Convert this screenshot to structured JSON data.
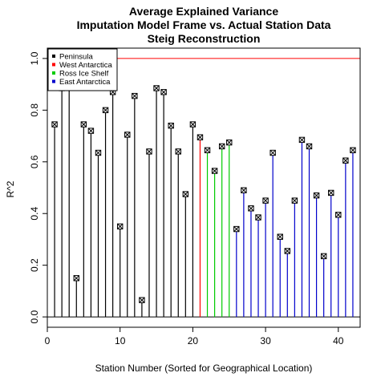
{
  "chart_data": {
    "type": "scatter",
    "plot_style": "vertical lines with open square-cross point markers (R type='h' with pch=7)",
    "title": [
      "Average Explained Variance",
      "Imputation Model Frame vs. Actual Station Data",
      "Steig Reconstruction"
    ],
    "xlabel": "Station Number (Sorted for Geographical Location)",
    "ylabel": "R^2",
    "xlim": [
      0,
      43
    ],
    "ylim": [
      -0.04,
      1.04
    ],
    "x_ticks": [
      0,
      10,
      20,
      30,
      40
    ],
    "x_tick_labels": [
      "0",
      "10",
      "20",
      "30",
      "40"
    ],
    "y_ticks": [
      0.0,
      0.2,
      0.4,
      0.6,
      0.8,
      1.0
    ],
    "y_tick_labels": [
      "0.0",
      "0.2",
      "0.4",
      "0.6",
      "0.8",
      "1.0"
    ],
    "grid": false,
    "legend_position": "top-left",
    "reference_lines": [
      {
        "orientation": "horizontal",
        "y": 0.0,
        "color": "#000000"
      },
      {
        "orientation": "horizontal",
        "y": 1.0,
        "color": "#ff0000"
      }
    ],
    "series": [
      {
        "name": "Peninsula",
        "color": "#000000",
        "x": [
          1,
          2,
          3,
          4,
          5,
          6,
          7,
          8,
          9,
          10,
          11,
          12,
          13,
          14,
          15,
          16,
          17,
          18,
          19,
          20
        ],
        "y": [
          0.745,
          0.885,
          0.895,
          0.15,
          0.745,
          0.72,
          0.635,
          0.8,
          0.87,
          0.35,
          0.705,
          0.855,
          0.065,
          0.64,
          0.885,
          0.87,
          0.74,
          0.64,
          0.475,
          0.745
        ]
      },
      {
        "name": "West Antarctica",
        "color": "#ff0000",
        "x": [
          21
        ],
        "y": [
          0.695
        ]
      },
      {
        "name": "Ross Ice Shelf",
        "color": "#00cc00",
        "x": [
          22,
          23,
          24,
          25
        ],
        "y": [
          0.645,
          0.565,
          0.66,
          0.675
        ]
      },
      {
        "name": "East Antarctica",
        "color": "#0000cc",
        "x": [
          26,
          27,
          28,
          29,
          30,
          31,
          32,
          33,
          34,
          35,
          36,
          37,
          38,
          39,
          40,
          41,
          42
        ],
        "y": [
          0.34,
          0.49,
          0.42,
          0.385,
          0.45,
          0.635,
          0.31,
          0.255,
          0.45,
          0.685,
          0.66,
          0.47,
          0.235,
          0.48,
          0.395,
          0.605,
          0.645
        ]
      }
    ]
  }
}
